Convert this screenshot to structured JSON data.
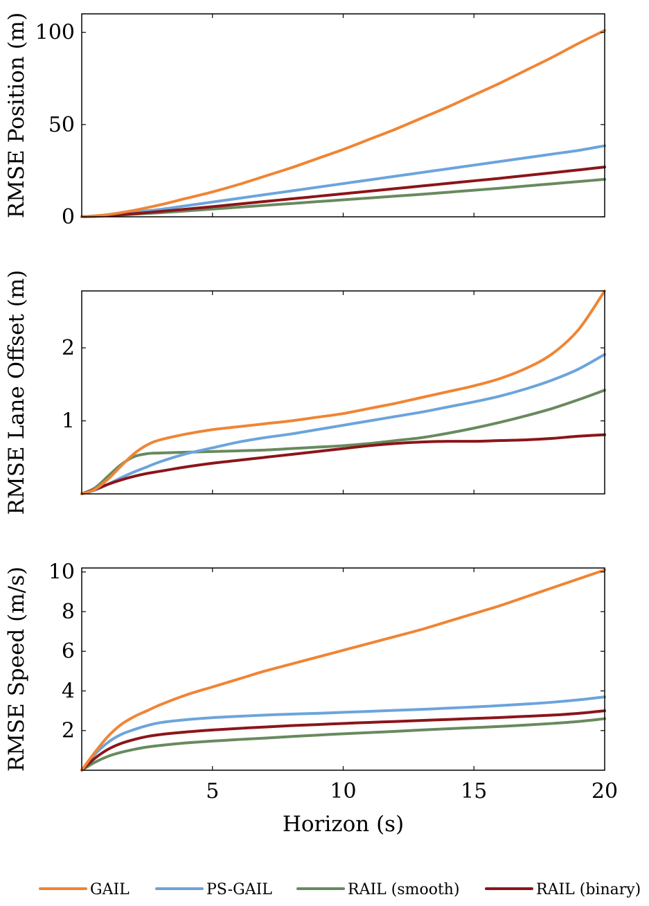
{
  "chart_data": [
    {
      "type": "line",
      "id": "position",
      "ylabel": "RMSE Position (m)",
      "xlabel": "",
      "xlim": [
        0,
        20
      ],
      "ylim": [
        0,
        110
      ],
      "xticks": [],
      "yticks": [
        0,
        50,
        100
      ],
      "x": [
        0,
        1,
        2,
        3,
        4,
        5,
        6,
        7,
        8,
        9,
        10,
        11,
        12,
        13,
        14,
        15,
        16,
        17,
        18,
        19,
        20
      ],
      "series": [
        {
          "name": "GAIL",
          "values": [
            0,
            1.2,
            3.5,
            6.5,
            10,
            13.5,
            17.5,
            22,
            26.5,
            31.5,
            36.5,
            42,
            47.5,
            53.5,
            59.5,
            66,
            72.5,
            79.5,
            86.5,
            94,
            101
          ]
        },
        {
          "name": "PS-GAIL",
          "values": [
            0,
            1,
            2.5,
            4,
            6,
            8,
            10,
            12,
            14,
            16,
            18,
            20,
            22,
            24,
            26,
            28,
            30,
            32,
            34,
            36,
            38.5
          ]
        },
        {
          "name": "RAIL (smooth)",
          "values": [
            0,
            0.6,
            1.4,
            2.2,
            3.2,
            4.2,
            5.2,
            6.2,
            7.2,
            8.2,
            9.2,
            10.2,
            11.2,
            12.2,
            13.3,
            14.4,
            15.5,
            16.7,
            17.9,
            19.1,
            20.3
          ]
        },
        {
          "name": "RAIL (binary)",
          "values": [
            0,
            0.7,
            1.7,
            2.9,
            4.2,
            5.5,
            6.9,
            8.3,
            9.7,
            11.1,
            12.5,
            13.9,
            15.3,
            16.7,
            18.1,
            19.5,
            20.9,
            22.4,
            23.9,
            25.4,
            27
          ]
        }
      ]
    },
    {
      "type": "line",
      "id": "lane-offset",
      "ylabel": "RMSE Lane Offset (m)",
      "xlabel": "",
      "xlim": [
        0,
        20
      ],
      "ylim": [
        0,
        2.78
      ],
      "xticks": [],
      "yticks": [
        1,
        2
      ],
      "x": [
        0,
        0.5,
        1,
        1.5,
        2,
        2.5,
        3,
        4,
        5,
        6,
        7,
        8,
        9,
        10,
        11,
        12,
        13,
        14,
        15,
        16,
        17,
        18,
        19,
        20
      ],
      "series": [
        {
          "name": "GAIL",
          "values": [
            0,
            0.06,
            0.2,
            0.38,
            0.55,
            0.67,
            0.74,
            0.82,
            0.88,
            0.92,
            0.96,
            1.0,
            1.05,
            1.1,
            1.17,
            1.24,
            1.32,
            1.4,
            1.48,
            1.58,
            1.72,
            1.92,
            2.25,
            2.78
          ]
        },
        {
          "name": "PS-GAIL",
          "values": [
            0,
            0.05,
            0.13,
            0.22,
            0.3,
            0.37,
            0.44,
            0.55,
            0.63,
            0.71,
            0.77,
            0.82,
            0.88,
            0.94,
            1.0,
            1.06,
            1.12,
            1.19,
            1.26,
            1.34,
            1.44,
            1.56,
            1.71,
            1.91
          ]
        },
        {
          "name": "RAIL (smooth)",
          "values": [
            0,
            0.08,
            0.24,
            0.4,
            0.51,
            0.55,
            0.56,
            0.57,
            0.58,
            0.59,
            0.6,
            0.62,
            0.64,
            0.66,
            0.69,
            0.73,
            0.77,
            0.83,
            0.9,
            0.98,
            1.07,
            1.17,
            1.29,
            1.42
          ]
        },
        {
          "name": "RAIL (binary)",
          "values": [
            0,
            0.06,
            0.13,
            0.19,
            0.24,
            0.28,
            0.31,
            0.37,
            0.42,
            0.46,
            0.5,
            0.54,
            0.58,
            0.62,
            0.66,
            0.69,
            0.71,
            0.72,
            0.72,
            0.73,
            0.74,
            0.76,
            0.79,
            0.81
          ]
        }
      ]
    },
    {
      "type": "line",
      "id": "speed",
      "ylabel": "RMSE Speed (m/s)",
      "xlabel": "Horizon (s)",
      "xlim": [
        0,
        20
      ],
      "ylim": [
        0,
        10.2
      ],
      "xticks": [
        5,
        10,
        15,
        20
      ],
      "yticks": [
        2,
        4,
        6,
        8,
        10
      ],
      "x": [
        0,
        0.5,
        1,
        1.5,
        2,
        2.5,
        3,
        4,
        5,
        6,
        7,
        8,
        9,
        10,
        11,
        12,
        13,
        14,
        15,
        16,
        17,
        18,
        19,
        20
      ],
      "series": [
        {
          "name": "GAIL",
          "values": [
            0,
            0.9,
            1.7,
            2.3,
            2.7,
            3.0,
            3.3,
            3.8,
            4.2,
            4.6,
            5.0,
            5.35,
            5.7,
            6.05,
            6.4,
            6.75,
            7.1,
            7.5,
            7.9,
            8.3,
            8.75,
            9.2,
            9.65,
            10.1
          ]
        },
        {
          "name": "PS-GAIL",
          "values": [
            0,
            0.8,
            1.4,
            1.8,
            2.05,
            2.25,
            2.4,
            2.55,
            2.65,
            2.72,
            2.78,
            2.83,
            2.87,
            2.92,
            2.97,
            3.02,
            3.07,
            3.13,
            3.19,
            3.26,
            3.34,
            3.43,
            3.55,
            3.7
          ]
        },
        {
          "name": "RAIL (smooth)",
          "values": [
            0,
            0.4,
            0.7,
            0.9,
            1.05,
            1.17,
            1.25,
            1.38,
            1.47,
            1.55,
            1.62,
            1.7,
            1.77,
            1.84,
            1.9,
            1.96,
            2.03,
            2.09,
            2.15,
            2.21,
            2.28,
            2.36,
            2.46,
            2.6
          ]
        },
        {
          "name": "RAIL (binary)",
          "values": [
            0,
            0.6,
            1.05,
            1.35,
            1.55,
            1.7,
            1.8,
            1.93,
            2.03,
            2.11,
            2.18,
            2.25,
            2.3,
            2.36,
            2.41,
            2.46,
            2.51,
            2.56,
            2.61,
            2.66,
            2.72,
            2.78,
            2.87,
            3.0
          ]
        }
      ]
    }
  ],
  "legend": [
    {
      "name": "GAIL",
      "color": "#EF8535"
    },
    {
      "name": "PS-GAIL",
      "color": "#6CA4DB"
    },
    {
      "name": "RAIL (smooth)",
      "color": "#688A5E"
    },
    {
      "name": "RAIL (binary)",
      "color": "#8B1519"
    }
  ]
}
